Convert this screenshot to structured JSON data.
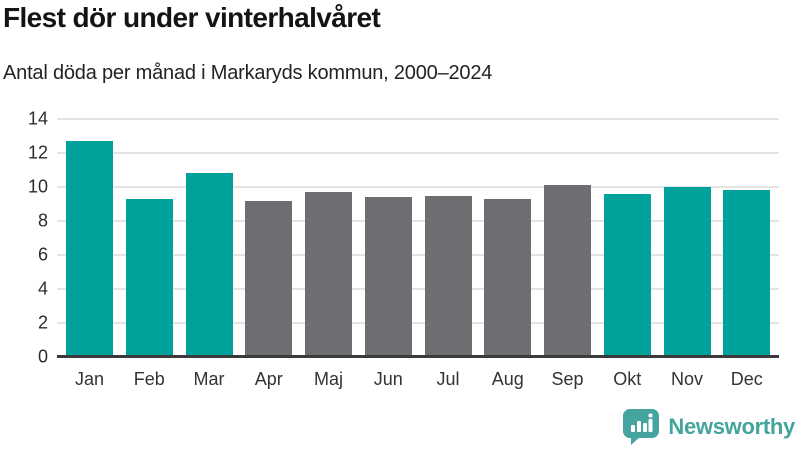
{
  "header": {
    "title": "Flest dör under vinterhalvåret",
    "subtitle": "Antal döda per månad i Markaryds kommun, 2000–2024"
  },
  "chart_data": {
    "type": "bar",
    "title": "Flest dör under vinterhalvåret",
    "subtitle": "Antal döda per månad i Markaryds kommun, 2000–2024",
    "categories": [
      "Jan",
      "Feb",
      "Mar",
      "Apr",
      "Maj",
      "Jun",
      "Jul",
      "Aug",
      "Sep",
      "Okt",
      "Nov",
      "Dec"
    ],
    "values": [
      12.7,
      9.3,
      10.8,
      9.2,
      9.7,
      9.4,
      9.5,
      9.3,
      10.1,
      9.6,
      10.0,
      9.8
    ],
    "bar_colors": [
      "#00a29b",
      "#00a29b",
      "#00a29b",
      "#6d6d72",
      "#6d6d72",
      "#6d6d72",
      "#6d6d72",
      "#6d6d72",
      "#6d6d72",
      "#00a29b",
      "#00a29b",
      "#00a29b"
    ],
    "highlight_meaning": "teal = winter half-year months, gray = summer half-year months",
    "xlabel": "",
    "ylabel": "",
    "ylim": [
      0,
      14
    ],
    "yticks": [
      0,
      2,
      4,
      6,
      8,
      10,
      12,
      14
    ],
    "grid": true,
    "legend_position": "none"
  },
  "colors": {
    "winter_teal": "#00a29b",
    "summer_gray": "#6d6d72",
    "gridline": "#e4e4e4",
    "axis_line": "#3b3b3b",
    "title_text": "#141414",
    "logo_teal": "#45a49d"
  },
  "footer": {
    "brand": "Newsworthy"
  }
}
